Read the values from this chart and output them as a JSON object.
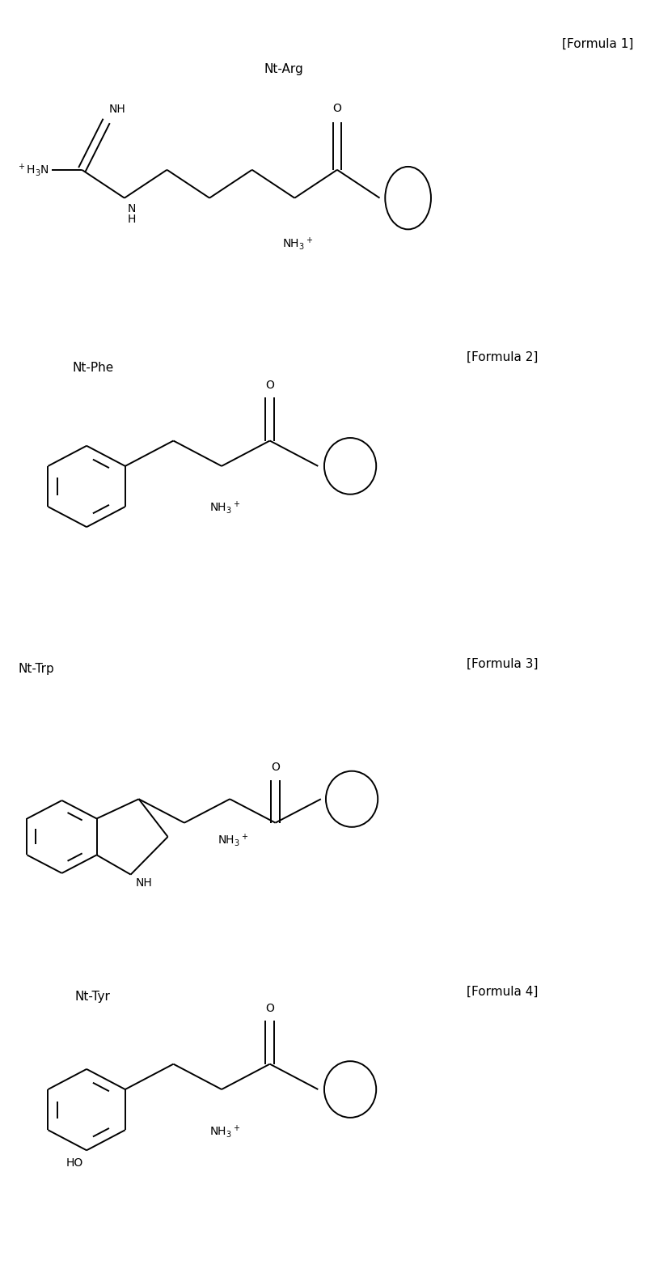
{
  "bg_color": "#ffffff",
  "line_color": "#000000",
  "text_color": "#000000",
  "figsize": [
    8.1,
    15.84
  ],
  "dpi": 100,
  "formulas": [
    "[Formula 1]",
    "[Formula 2]",
    "[Formula 3]",
    "[Formula 4]"
  ],
  "font_size_formula": 11,
  "font_size_label": 11,
  "font_size_atom": 10
}
